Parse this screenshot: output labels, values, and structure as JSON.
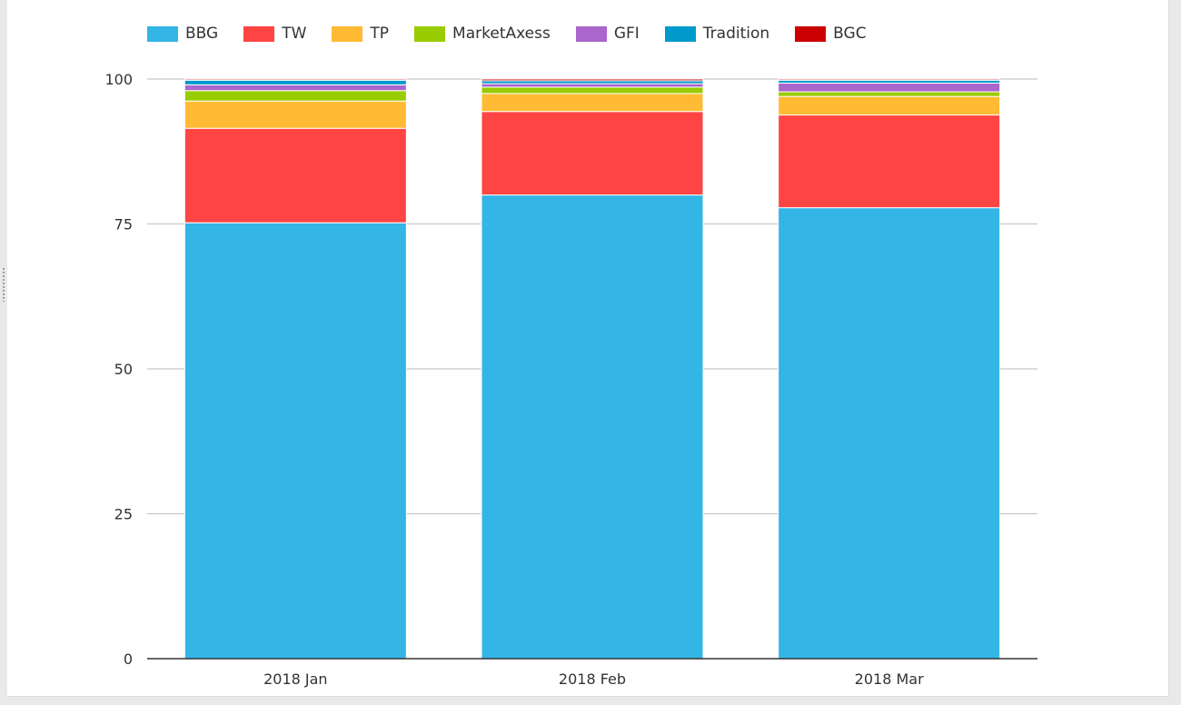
{
  "chart_data": {
    "type": "bar",
    "stacked": true,
    "categories": [
      "2018 Jan",
      "2018 Feb",
      "2018 Mar"
    ],
    "series": [
      {
        "name": "BBG",
        "color": "#33b5e5",
        "values": [
          75.2,
          80.0,
          77.8
        ]
      },
      {
        "name": "TW",
        "color": "#ff4444",
        "values": [
          16.3,
          14.4,
          16.0
        ]
      },
      {
        "name": "TP",
        "color": "#ffbb33",
        "values": [
          4.7,
          3.1,
          3.2
        ]
      },
      {
        "name": "MarketAxess",
        "color": "#99cc00",
        "values": [
          1.8,
          1.1,
          0.8
        ]
      },
      {
        "name": "GFI",
        "color": "#aa66cc",
        "values": [
          1.0,
          0.6,
          1.5
        ]
      },
      {
        "name": "Tradition",
        "color": "#0099cc",
        "values": [
          0.8,
          0.5,
          0.5
        ]
      },
      {
        "name": "BGC",
        "color": "#cc0000",
        "values": [
          0.2,
          0.3,
          0.2
        ]
      }
    ],
    "yticks": [
      0,
      25,
      50,
      75,
      100
    ],
    "ylim": [
      0,
      100
    ],
    "grid": true,
    "legend_position": "top-left"
  }
}
